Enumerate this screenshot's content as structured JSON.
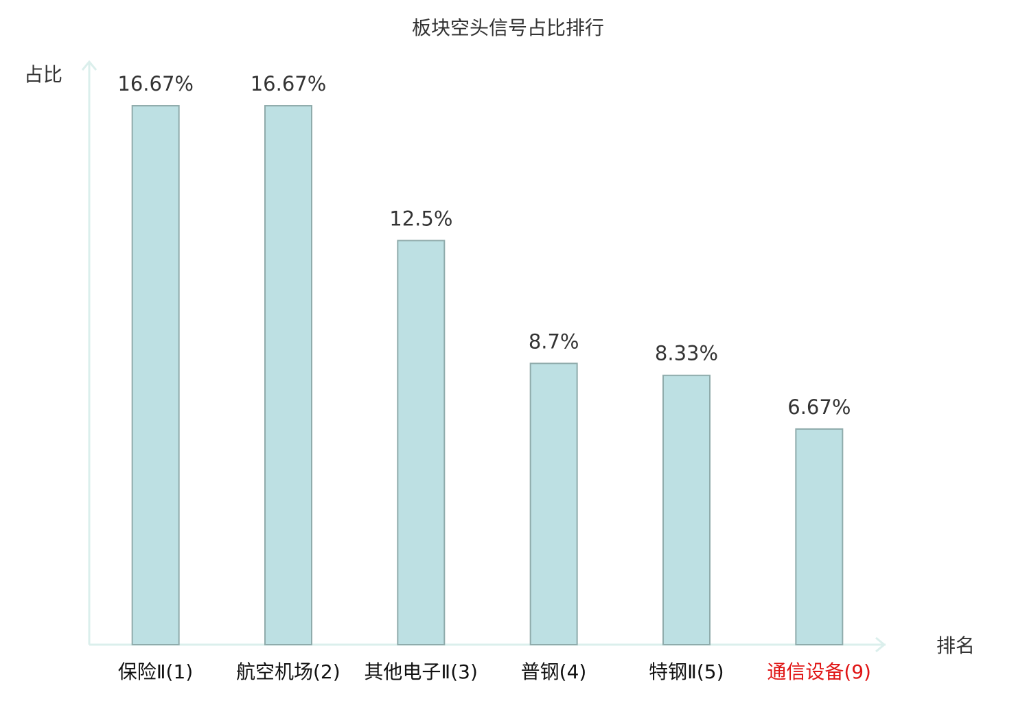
{
  "chart_data": {
    "type": "bar",
    "title": "板块空头信号占比排行",
    "y_label": "占比",
    "x_label": "排名",
    "categories": [
      "保险Ⅱ(1)",
      "航空机场(2)",
      "其他电子Ⅱ(3)",
      "普钢(4)",
      "特钢Ⅱ(5)",
      "通信设备(9)"
    ],
    "category_colors": [
      "#111111",
      "#111111",
      "#111111",
      "#111111",
      "#111111",
      "#e01515"
    ],
    "values": [
      16.67,
      16.67,
      12.5,
      8.7,
      8.33,
      6.67
    ],
    "value_labels": [
      "16.67%",
      "16.67%",
      "12.5%",
      "8.7%",
      "8.33%",
      "6.67%"
    ],
    "color": "#bde0e3",
    "edge_color": "#8fabab",
    "ylim": [
      0,
      18
    ]
  }
}
